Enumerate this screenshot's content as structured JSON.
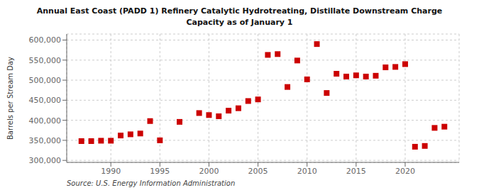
{
  "chart_data": {
    "type": "scatter",
    "title": "Annual East Coast (PADD 1) Refinery Catalytic Hydrotreating, Distillate Downstream Charge\nCapacity as of January 1",
    "ylabel": "Barrels per Stream Day",
    "annotations": [
      "Source: U.S. Energy Information Administration"
    ],
    "x": [
      1987,
      1988,
      1989,
      1990,
      1991,
      1992,
      1993,
      1994,
      1995,
      1997,
      1999,
      2000,
      2001,
      2002,
      2003,
      2004,
      2005,
      2006,
      2007,
      2008,
      2009,
      2010,
      2011,
      2012,
      2013,
      2014,
      2015,
      2016,
      2017,
      2018,
      2019,
      2020,
      2021,
      2022,
      2023,
      2024
    ],
    "values": [
      348000,
      348000,
      349000,
      349000,
      362000,
      365000,
      367000,
      398000,
      350000,
      396000,
      418000,
      413000,
      410000,
      424000,
      430000,
      448000,
      452000,
      563000,
      565000,
      483000,
      549000,
      502000,
      590000,
      468000,
      516000,
      509000,
      512000,
      509000,
      511000,
      532000,
      533000,
      540000,
      334000,
      336000,
      381000,
      384000
    ],
    "color": "#cc0000",
    "marker": "square",
    "xlim": [
      1985.5,
      2025.5
    ],
    "xticks": [
      1990,
      1995,
      2000,
      2005,
      2010,
      2015,
      2020
    ],
    "ylim": [
      295000,
      615000
    ],
    "yticks": [
      {
        "value": 300000,
        "label": "300,000"
      },
      {
        "value": 350000,
        "label": "350,000"
      },
      {
        "value": 400000,
        "label": "400,000"
      },
      {
        "value": 450000,
        "label": "450,000"
      },
      {
        "value": 500000,
        "label": "500,000"
      },
      {
        "value": 550000,
        "label": "550,000"
      },
      {
        "value": 600000,
        "label": "600,000"
      }
    ],
    "grid": true
  }
}
